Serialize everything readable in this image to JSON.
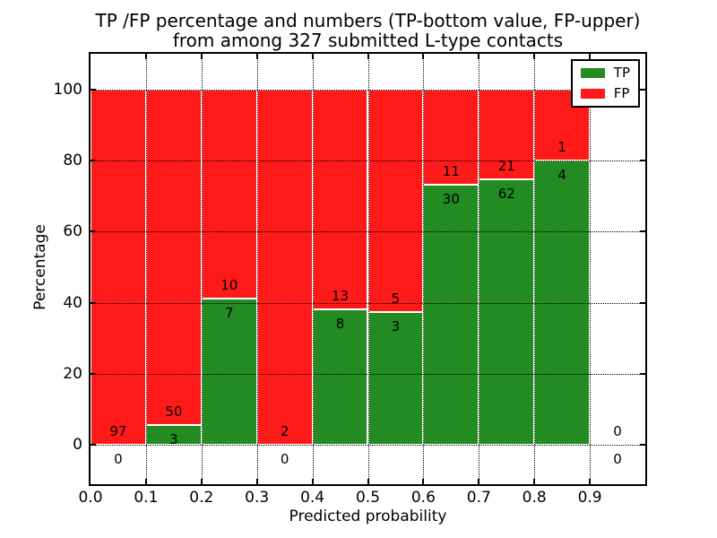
{
  "chart_data": {
    "type": "bar",
    "stacked": true,
    "normalized": "percent",
    "title_line1": "TP /FP percentage and numbers (TP-bottom value, FP-upper)",
    "title_line2": "from among 327 submitted L-type contacts",
    "xlabel": "Predicted probability",
    "ylabel": "Percentage",
    "xlim": [
      0.0,
      1.0
    ],
    "ylim": [
      -11,
      110
    ],
    "grid": "dotted",
    "legend_position": "upper right",
    "xticks": [
      "0.0",
      "0.1",
      "0.2",
      "0.3",
      "0.4",
      "0.5",
      "0.6",
      "0.7",
      "0.8",
      "0.9"
    ],
    "yticks": [
      0,
      20,
      40,
      60,
      80,
      100
    ],
    "categories": [
      "0.0-0.1",
      "0.1-0.2",
      "0.2-0.3",
      "0.3-0.4",
      "0.4-0.5",
      "0.5-0.6",
      "0.6-0.7",
      "0.7-0.8",
      "0.8-0.9",
      "0.9-1.0"
    ],
    "series": [
      {
        "name": "TP",
        "color": "#228b22",
        "counts": [
          0,
          3,
          7,
          0,
          8,
          3,
          30,
          62,
          4,
          0
        ]
      },
      {
        "name": "FP",
        "color": "#ff1a1a",
        "counts": [
          97,
          50,
          10,
          2,
          13,
          5,
          11,
          21,
          1,
          0
        ]
      }
    ],
    "legend": {
      "entries": [
        {
          "label": "TP",
          "color": "#228b22"
        },
        {
          "label": "FP",
          "color": "#ff1a1a"
        }
      ]
    }
  }
}
